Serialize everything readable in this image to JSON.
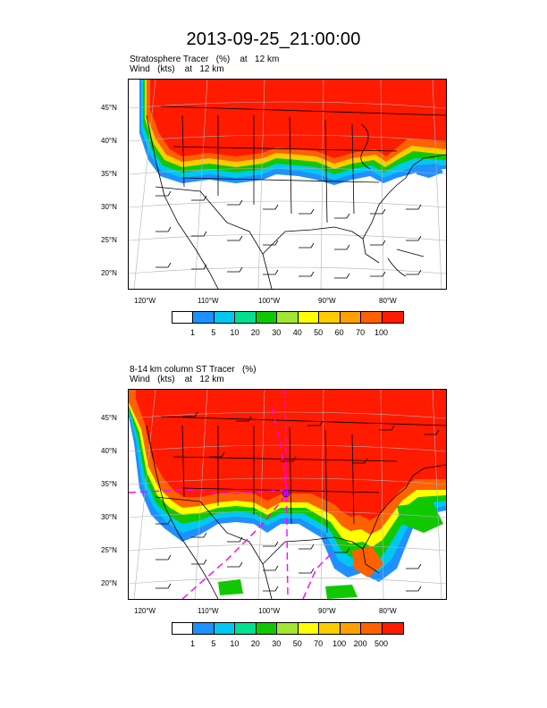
{
  "title": "2013-09-25_21:00:00",
  "panels": [
    {
      "subtitle_line1": "Stratosphere Tracer   (%)    at   12 km",
      "subtitle_line2": "Wind   (kts)    at   12 km",
      "lat_labels": [
        "45°N",
        "40°N",
        "35°N",
        "30°N",
        "25°N",
        "20°N"
      ],
      "lon_labels": [
        "120°W",
        "110°W",
        "100°W",
        "90°W",
        "80°W"
      ],
      "colorbar_labels": [
        "1",
        "5",
        "10",
        "20",
        "30",
        "40",
        "50",
        "60",
        "70",
        "100"
      ],
      "colorbar_colors": [
        "#ffffff",
        "#1e90ff",
        "#00c8f0",
        "#00e090",
        "#10c800",
        "#a0e632",
        "#ffff00",
        "#ffcc00",
        "#ffa000",
        "#ff6000",
        "#ff1a00"
      ]
    },
    {
      "subtitle_line1": "8-14 km column ST Tracer   (%)",
      "subtitle_line2": "Wind   (kts)    at   12 km",
      "lat_labels": [
        "45°N",
        "40°N",
        "35°N",
        "30°N",
        "25°N",
        "20°N"
      ],
      "lon_labels": [
        "120°W",
        "110°W",
        "100°W",
        "90°W",
        "80°W"
      ],
      "colorbar_labels": [
        "1",
        "5",
        "10",
        "20",
        "30",
        "50",
        "70",
        "100",
        "200",
        "500"
      ],
      "colorbar_colors": [
        "#ffffff",
        "#1e90ff",
        "#00c8f0",
        "#00e090",
        "#10c800",
        "#a0e632",
        "#ffff00",
        "#ffcc00",
        "#ffa000",
        "#ff6000",
        "#ff1a00"
      ]
    }
  ]
}
